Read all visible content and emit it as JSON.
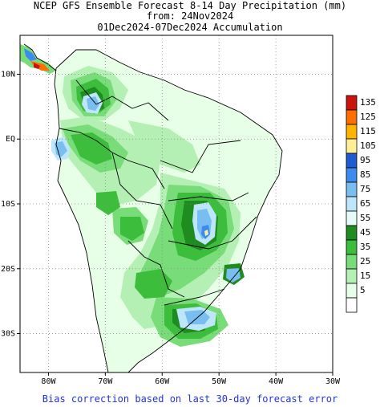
{
  "header": {
    "line1": "NCEP GFS Ensemble Forecast 8-14 Day Precipitation (mm)",
    "line2": "from: 24Nov2024",
    "line3": "01Dec2024-07Dec2024 Accumulation"
  },
  "map": {
    "lon_range": [
      -85,
      -30
    ],
    "lat_range": [
      -36,
      16
    ],
    "lon_ticks": [
      {
        "lon": -80,
        "label": "80W"
      },
      {
        "lon": -70,
        "label": "70W"
      },
      {
        "lon": -60,
        "label": "60W"
      },
      {
        "lon": -50,
        "label": "50W"
      },
      {
        "lon": -40,
        "label": "40W"
      },
      {
        "lon": -30,
        "label": "30W"
      }
    ],
    "lat_ticks": [
      {
        "lat": 10,
        "label": "10N"
      },
      {
        "lat": 0,
        "label": "EQ"
      },
      {
        "lat": -10,
        "label": "10S"
      },
      {
        "lat": -20,
        "label": "20S"
      },
      {
        "lat": -30,
        "label": "30S"
      }
    ],
    "grid": "dotted"
  },
  "legend": {
    "levels": [
      {
        "label": "135",
        "color": "#c8140a"
      },
      {
        "label": "125",
        "color": "#ff6e00"
      },
      {
        "label": "115",
        "color": "#ffb400"
      },
      {
        "label": "105",
        "color": "#ffee96"
      },
      {
        "label": "95",
        "color": "#1e5ad2"
      },
      {
        "label": "85",
        "color": "#3c8cf0"
      },
      {
        "label": "75",
        "color": "#78bef0"
      },
      {
        "label": "65",
        "color": "#bee6fa"
      },
      {
        "label": "55",
        "color": "#e6fafa"
      },
      {
        "label": "45",
        "color": "#1e8c1e"
      },
      {
        "label": "35",
        "color": "#3cbe3c"
      },
      {
        "label": "25",
        "color": "#78dc78"
      },
      {
        "label": "15",
        "color": "#b4f0b4"
      },
      {
        "label": "5",
        "color": "#e6ffe6"
      },
      {
        "label": "",
        "color": "#ffffff"
      }
    ]
  },
  "footer": {
    "note": "Bias correction based on last 30-day forecast error"
  }
}
